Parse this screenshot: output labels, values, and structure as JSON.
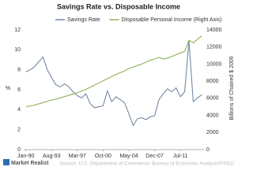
{
  "chart_data": {
    "type": "line",
    "title": "Savings Rate vs. Disposable Income",
    "y_label": "%",
    "y2_label": "Billions of Chained $ 2009",
    "source": "Source: U.S. Department of Commerce: Bureau of Economic Analysis/FRED",
    "brand": "Market Realist",
    "categories": [
      "Jan-90",
      null,
      null,
      null,
      null,
      null,
      "Aug-93",
      null,
      null,
      null,
      null,
      null,
      "Mar-97",
      null,
      null,
      null,
      null,
      null,
      "Oct-00",
      null,
      null,
      null,
      null,
      null,
      "May-04",
      null,
      null,
      null,
      null,
      null,
      "Dec-07",
      null,
      null,
      null,
      null,
      null,
      "Jul-11",
      null,
      null,
      null,
      null,
      null
    ],
    "series": [
      {
        "name": "Savings Rate",
        "color": "#7389a3",
        "values": [
          7.8,
          8.0,
          8.3,
          8.8,
          9.3,
          8.0,
          7.2,
          6.5,
          6.3,
          6.6,
          6.3,
          5.8,
          5.4,
          5.2,
          5.6,
          4.6,
          4.2,
          4.3,
          4.4,
          5.9,
          4.8,
          5.3,
          5.0,
          4.7,
          3.6,
          2.4,
          3.1,
          3.2,
          3.0,
          3.3,
          3.4,
          5.0,
          5.6,
          6.1,
          5.8,
          6.2,
          5.3,
          5.8,
          10.9,
          4.8,
          5.2,
          5.5
        ]
      },
      {
        "name": "Disposable Personal Income (Right Axis)",
        "color": "#8db255",
        "axis": "y2",
        "values": [
          5000,
          5100,
          5200,
          5350,
          5500,
          5650,
          5800,
          5900,
          6050,
          6200,
          6350,
          6500,
          6650,
          6850,
          7050,
          7300,
          7550,
          7800,
          8050,
          8300,
          8550,
          8800,
          9000,
          9200,
          9500,
          9650,
          9850,
          10000,
          10250,
          10450,
          10600,
          10800,
          10600,
          10700,
          10900,
          11100,
          11300,
          11500,
          12800,
          12500,
          12900,
          13300
        ]
      }
    ],
    "ylim": [
      0,
      12
    ],
    "yticks": [
      0,
      2,
      4,
      6,
      8,
      10,
      12
    ],
    "y2lim": [
      0,
      14000
    ],
    "y2ticks": [
      0,
      2000,
      4000,
      6000,
      8000,
      10000,
      12000,
      14000
    ],
    "grid": false
  }
}
